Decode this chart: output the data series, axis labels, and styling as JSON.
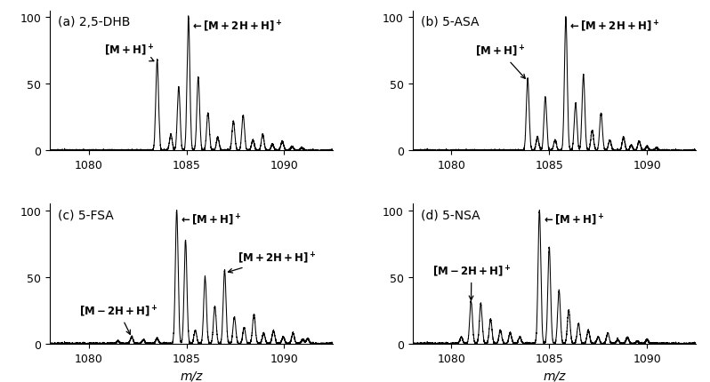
{
  "panels": [
    {
      "label": "(a) 2,5-DHB",
      "type": "a",
      "peaks": [
        [
          1083.5,
          68
        ],
        [
          1084.2,
          12
        ],
        [
          1084.6,
          48
        ],
        [
          1085.1,
          100
        ],
        [
          1085.6,
          55
        ],
        [
          1086.1,
          28
        ],
        [
          1086.6,
          10
        ],
        [
          1087.4,
          22
        ],
        [
          1087.9,
          26
        ],
        [
          1088.4,
          8
        ],
        [
          1088.9,
          12
        ],
        [
          1089.4,
          5
        ],
        [
          1089.9,
          7
        ],
        [
          1090.4,
          3
        ],
        [
          1090.9,
          2
        ]
      ]
    },
    {
      "label": "(b) 5-ASA",
      "type": "b",
      "peaks": [
        [
          1083.9,
          54
        ],
        [
          1084.4,
          10
        ],
        [
          1084.8,
          40
        ],
        [
          1085.3,
          8
        ],
        [
          1085.85,
          100
        ],
        [
          1086.35,
          35
        ],
        [
          1086.75,
          57
        ],
        [
          1087.2,
          15
        ],
        [
          1087.65,
          28
        ],
        [
          1088.1,
          8
        ],
        [
          1088.8,
          10
        ],
        [
          1089.2,
          4
        ],
        [
          1089.6,
          7
        ],
        [
          1090.0,
          3
        ],
        [
          1090.5,
          2
        ]
      ]
    },
    {
      "label": "(c) 5-FSA",
      "type": "c",
      "peaks": [
        [
          1081.5,
          2
        ],
        [
          1082.2,
          5
        ],
        [
          1082.8,
          3
        ],
        [
          1083.5,
          4
        ],
        [
          1084.5,
          100
        ],
        [
          1084.95,
          78
        ],
        [
          1085.45,
          10
        ],
        [
          1085.95,
          50
        ],
        [
          1086.45,
          28
        ],
        [
          1086.95,
          55
        ],
        [
          1087.45,
          20
        ],
        [
          1087.95,
          12
        ],
        [
          1088.45,
          22
        ],
        [
          1088.95,
          8
        ],
        [
          1089.45,
          10
        ],
        [
          1089.95,
          5
        ],
        [
          1090.45,
          8
        ],
        [
          1090.95,
          3
        ],
        [
          1091.2,
          4
        ]
      ]
    },
    {
      "label": "(d) 5-NSA",
      "type": "d",
      "peaks": [
        [
          1080.5,
          5
        ],
        [
          1081.0,
          32
        ],
        [
          1081.5,
          30
        ],
        [
          1082.0,
          18
        ],
        [
          1082.5,
          10
        ],
        [
          1083.0,
          8
        ],
        [
          1083.5,
          5
        ],
        [
          1084.5,
          100
        ],
        [
          1085.0,
          72
        ],
        [
          1085.5,
          40
        ],
        [
          1086.0,
          25
        ],
        [
          1086.5,
          15
        ],
        [
          1087.0,
          10
        ],
        [
          1087.5,
          5
        ],
        [
          1088.0,
          8
        ],
        [
          1088.5,
          3
        ],
        [
          1089.0,
          5
        ],
        [
          1089.5,
          2
        ],
        [
          1090.0,
          3
        ]
      ]
    }
  ],
  "xlim": [
    1078,
    1092.5
  ],
  "ylim": [
    0,
    105
  ],
  "xticks": [
    1080,
    1085,
    1090
  ],
  "yticks": [
    0,
    50,
    100
  ],
  "xlabel": "m/z",
  "bg_color": "#ffffff",
  "line_color": "#000000"
}
